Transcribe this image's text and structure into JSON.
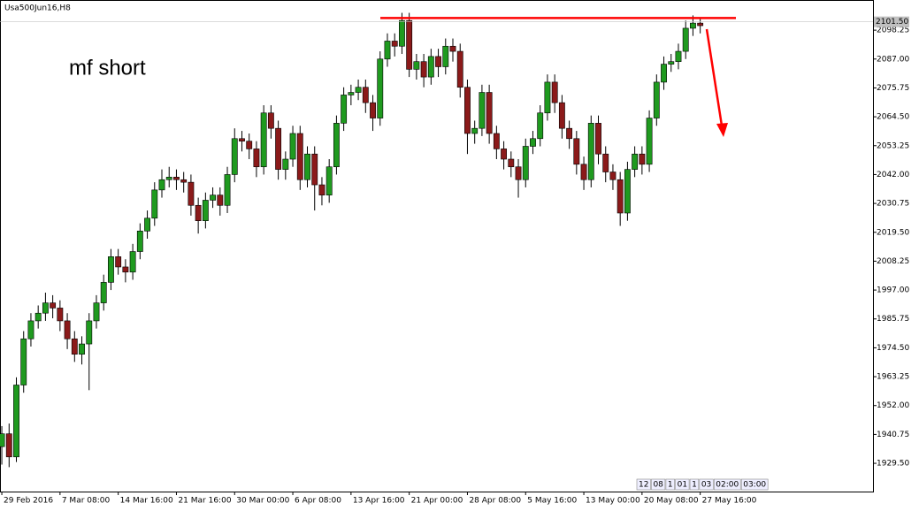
{
  "chart_data": {
    "type": "candlestick",
    "title": "Usa500Jun16,H8",
    "annotation": "mf short",
    "xlim": [
      -0.5,
      239.5
    ],
    "xticks": [
      {
        "value": 0,
        "label": "29 Feb 2016"
      },
      {
        "value": 16,
        "label": "7 Mar 08:00"
      },
      {
        "value": 32,
        "label": "14 Mar 16:00"
      },
      {
        "value": 48,
        "label": "21 Mar 16:00"
      },
      {
        "value": 64,
        "label": "30 Mar 00:00"
      },
      {
        "value": 80,
        "label": "6 Apr 08:00"
      },
      {
        "value": 96,
        "label": "13 Apr 16:00"
      },
      {
        "value": 112,
        "label": "21 Apr 00:00"
      },
      {
        "value": 128,
        "label": "28 Apr 08:00"
      },
      {
        "value": 144,
        "label": "5 May 16:00"
      },
      {
        "value": 160,
        "label": "13 May 00:00"
      },
      {
        "value": 176,
        "label": "20 May 08:00"
      },
      {
        "value": 192,
        "label": "27 May 16:00"
      }
    ],
    "ylim": [
      1918.5,
      2110
    ],
    "yticks": [
      2098.25,
      {
        "value": 2087,
        "label": "2087.00"
      },
      2075.75,
      {
        "value": 2064.5,
        "label": "2064.50"
      },
      2053.25,
      {
        "value": 2042,
        "label": "2042.00"
      },
      2030.75,
      {
        "value": 2019.5,
        "label": "2019.50"
      },
      2008.25,
      {
        "value": 1997,
        "label": "1997.00"
      },
      1985.75,
      {
        "value": 1974.5,
        "label": "1974.50"
      },
      1963.25,
      {
        "value": 1952,
        "label": "1952.00"
      },
      1940.75,
      {
        "value": 1929.5,
        "label": "1929.50"
      }
    ],
    "current_price": {
      "value": 2101.5,
      "label": "2101.50"
    },
    "hline": {
      "value": 2103,
      "color": "#ff0000"
    },
    "up_color": "#1f9a1f",
    "down_color": "#8b1a1a",
    "navigator": [
      "12",
      "08",
      "1",
      "01",
      "1",
      "03",
      "02:00",
      "03:00"
    ],
    "x": [
      0,
      2,
      4,
      6,
      8,
      10,
      12,
      14,
      16,
      18,
      20,
      22,
      24,
      26,
      28,
      30,
      32,
      34,
      36,
      38,
      40,
      42,
      44,
      46,
      48,
      50,
      52,
      54,
      56,
      58,
      60,
      62,
      64,
      66,
      68,
      70,
      72,
      74,
      76,
      78,
      80,
      82,
      84,
      86,
      88,
      90,
      92,
      94,
      96,
      98,
      100,
      102,
      104,
      106,
      108,
      110,
      112,
      114,
      116,
      118,
      120,
      122,
      124,
      126,
      128,
      130,
      132,
      134,
      136,
      138,
      140,
      142,
      144,
      146,
      148,
      150,
      152,
      154,
      156,
      158,
      160,
      162,
      164,
      166,
      168,
      170,
      172,
      174,
      176,
      178,
      180,
      182,
      184,
      186,
      188,
      190,
      192
    ],
    "open": [
      1936,
      1941,
      1932,
      1960,
      1978,
      1985,
      1988,
      1992,
      1990,
      1985,
      1978,
      1972,
      1976,
      1985,
      1992,
      2000,
      2010,
      2006,
      2004,
      2012,
      2020,
      2025,
      2036,
      2040,
      2041,
      2040,
      2039,
      2030,
      2024,
      2032,
      2034,
      2030,
      2042,
      2056,
      2055,
      2052,
      2045,
      2066,
      2060,
      2044,
      2048,
      2058,
      2040,
      2050,
      2038,
      2034,
      2045,
      2062,
      2073,
      2074,
      2076,
      2070,
      2064,
      2087,
      2094,
      2092,
      2102,
      2083,
      2086,
      2080,
      2088,
      2084,
      2092,
      2090,
      2076,
      2058,
      2060,
      2074,
      2058,
      2052,
      2048,
      2045,
      2040,
      2053,
      2056,
      2066,
      2078,
      2070,
      2060,
      2056,
      2046,
      2040,
      2062,
      2050,
      2043,
      2040,
      2027,
      2044,
      2050,
      2046,
      2064,
      2078,
      2085,
      2086,
      2090,
      2099,
      2101
    ],
    "high": [
      1944,
      1945,
      1963,
      1981,
      1988,
      1991,
      1996,
      1995,
      1993,
      1988,
      1981,
      1979,
      1988,
      1995,
      2003,
      2013,
      2013,
      2009,
      2015,
      2023,
      2028,
      2039,
      2044,
      2045,
      2044,
      2043,
      2042,
      2033,
      2035,
      2037,
      2037,
      2045,
      2060,
      2059,
      2058,
      2055,
      2069,
      2069,
      2063,
      2051,
      2061,
      2061,
      2053,
      2053,
      2041,
      2048,
      2065,
      2076,
      2077,
      2079,
      2079,
      2073,
      2090,
      2097,
      2097,
      2105,
      2105,
      2089,
      2089,
      2091,
      2091,
      2095,
      2095,
      2093,
      2079,
      2063,
      2077,
      2077,
      2061,
      2055,
      2051,
      2048,
      2056,
      2059,
      2069,
      2081,
      2081,
      2073,
      2063,
      2059,
      2049,
      2065,
      2065,
      2053,
      2046,
      2043,
      2047,
      2053,
      2053,
      2067,
      2081,
      2088,
      2089,
      2093,
      2102,
      2104,
      2103
    ],
    "low": [
      1929,
      1928,
      1930,
      1957,
      1975,
      1982,
      1985,
      1986,
      1981,
      1974,
      1969,
      1968,
      1958,
      1982,
      1989,
      1997,
      2003,
      2000,
      2001,
      2009,
      2017,
      2022,
      2033,
      2037,
      2036,
      2035,
      2026,
      2019,
      2021,
      2029,
      2026,
      2027,
      2039,
      2051,
      2048,
      2041,
      2042,
      2056,
      2040,
      2040,
      2045,
      2036,
      2037,
      2028,
      2030,
      2031,
      2042,
      2059,
      2069,
      2071,
      2066,
      2059,
      2061,
      2084,
      2088,
      2089,
      2080,
      2079,
      2076,
      2077,
      2080,
      2081,
      2086,
      2072,
      2050,
      2054,
      2057,
      2054,
      2048,
      2044,
      2041,
      2033,
      2037,
      2050,
      2053,
      2063,
      2066,
      2056,
      2052,
      2042,
      2036,
      2037,
      2046,
      2039,
      2036,
      2022,
      2024,
      2041,
      2042,
      2043,
      2061,
      2075,
      2082,
      2083,
      2087,
      2096,
      2097
    ],
    "close": [
      1941,
      1932,
      1960,
      1978,
      1985,
      1988,
      1992,
      1990,
      1985,
      1978,
      1972,
      1976,
      1985,
      1992,
      2000,
      2010,
      2006,
      2004,
      2012,
      2020,
      2025,
      2036,
      2040,
      2041,
      2040,
      2039,
      2030,
      2024,
      2032,
      2034,
      2030,
      2042,
      2056,
      2055,
      2052,
      2045,
      2066,
      2060,
      2044,
      2048,
      2058,
      2040,
      2050,
      2038,
      2034,
      2045,
      2062,
      2073,
      2074,
      2076,
      2070,
      2064,
      2087,
      2094,
      2092,
      2102,
      2083,
      2086,
      2080,
      2088,
      2084,
      2092,
      2090,
      2076,
      2058,
      2060,
      2074,
      2058,
      2052,
      2048,
      2045,
      2040,
      2053,
      2056,
      2066,
      2078,
      2070,
      2060,
      2056,
      2046,
      2040,
      2062,
      2050,
      2043,
      2040,
      2027,
      2044,
      2050,
      2046,
      2064,
      2078,
      2085,
      2086,
      2090,
      2099,
      2101,
      2100
    ]
  }
}
